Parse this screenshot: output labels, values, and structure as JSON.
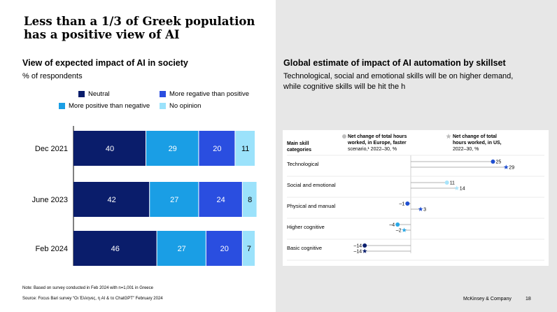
{
  "title": "Less than a 1/3 of Greek population has a positive view of AI",
  "left": {
    "subtitle": "View of expected impact of AI in society",
    "unit": "% of respondents",
    "footnote_note": "Note: Based on survey conducted in Feb 2024 with n=1,001 in Greece",
    "footnote_source": "Source: Focus Bari survey “Οι Έλληνες, η AI & το ChatGPT” February 2024"
  },
  "right": {
    "subtitle": "Global estimate of impact of AI automation by skillset",
    "description_line1": "Technological, social and emotional skills will be on higher demand,",
    "description_line2": "while cognitive skills will be hit the h"
  },
  "footer": {
    "brand": "McKinsey & Company",
    "page": "18"
  },
  "chart_data": [
    {
      "type": "bar",
      "orientation": "horizontal",
      "stacked": true,
      "categories": [
        "Dec 2021",
        "June 2023",
        "Feb 2024"
      ],
      "series": [
        {
          "name": "Neutral",
          "color": "#0a1d6b",
          "values": [
            40,
            42,
            46
          ]
        },
        {
          "name": "More positive than negative",
          "color": "#1a9ee5",
          "values": [
            29,
            27,
            27
          ]
        },
        {
          "name": "More regative than positive",
          "color": "#2a4ee0",
          "values": [
            20,
            24,
            20
          ]
        },
        {
          "name": "No opinion",
          "color": "#9be2fb",
          "values": [
            11,
            8,
            7
          ]
        }
      ],
      "stack_order": [
        "Neutral",
        "More positive than negative",
        "More regative than positive",
        "No opinion"
      ],
      "legend_order": [
        "Neutral",
        "More regative than positive",
        "More positive than negative",
        "No opinion"
      ],
      "legend_position": "top",
      "label_color_dark": "#ffffff",
      "label_color_light": "#000000"
    },
    {
      "type": "scatter",
      "style": "dot plot with leader lines",
      "header": "Main skill categories",
      "categories": [
        "Technological",
        "Social and emotional",
        "Physical and manual",
        "Higher cognitive",
        "Basic cognitive"
      ],
      "series": [
        {
          "name": "Net change of total hours worked, in Europe, faster scenario,¹ 2022–30, %",
          "marker": "circle",
          "values": [
            25,
            11,
            -1,
            -4,
            -14
          ]
        },
        {
          "name": "Net change of total hours worked, in US, 2022–30, %",
          "marker": "star",
          "values": [
            29,
            14,
            3,
            -2,
            -14
          ]
        }
      ],
      "value_labels": [
        {
          "europe": "25",
          "us": "29"
        },
        {
          "europe": "11",
          "us": "14"
        },
        {
          "europe": "–1",
          "us": "3"
        },
        {
          "europe": "–4",
          "us": "–2"
        },
        {
          "europe": "–14",
          "us": "–14"
        }
      ],
      "colors": {
        "Technological": "#1f4fd1",
        "Social and emotional": "#a9e4fa",
        "Physical and manual": "#1f4fd1",
        "Higher cognitive": "#2aa8e6",
        "Basic cognitive": "#0b1f6e",
        "legend_marker": "#bdbdbd",
        "zero_line": "#cfcfcf"
      },
      "legend_position": "top"
    }
  ]
}
